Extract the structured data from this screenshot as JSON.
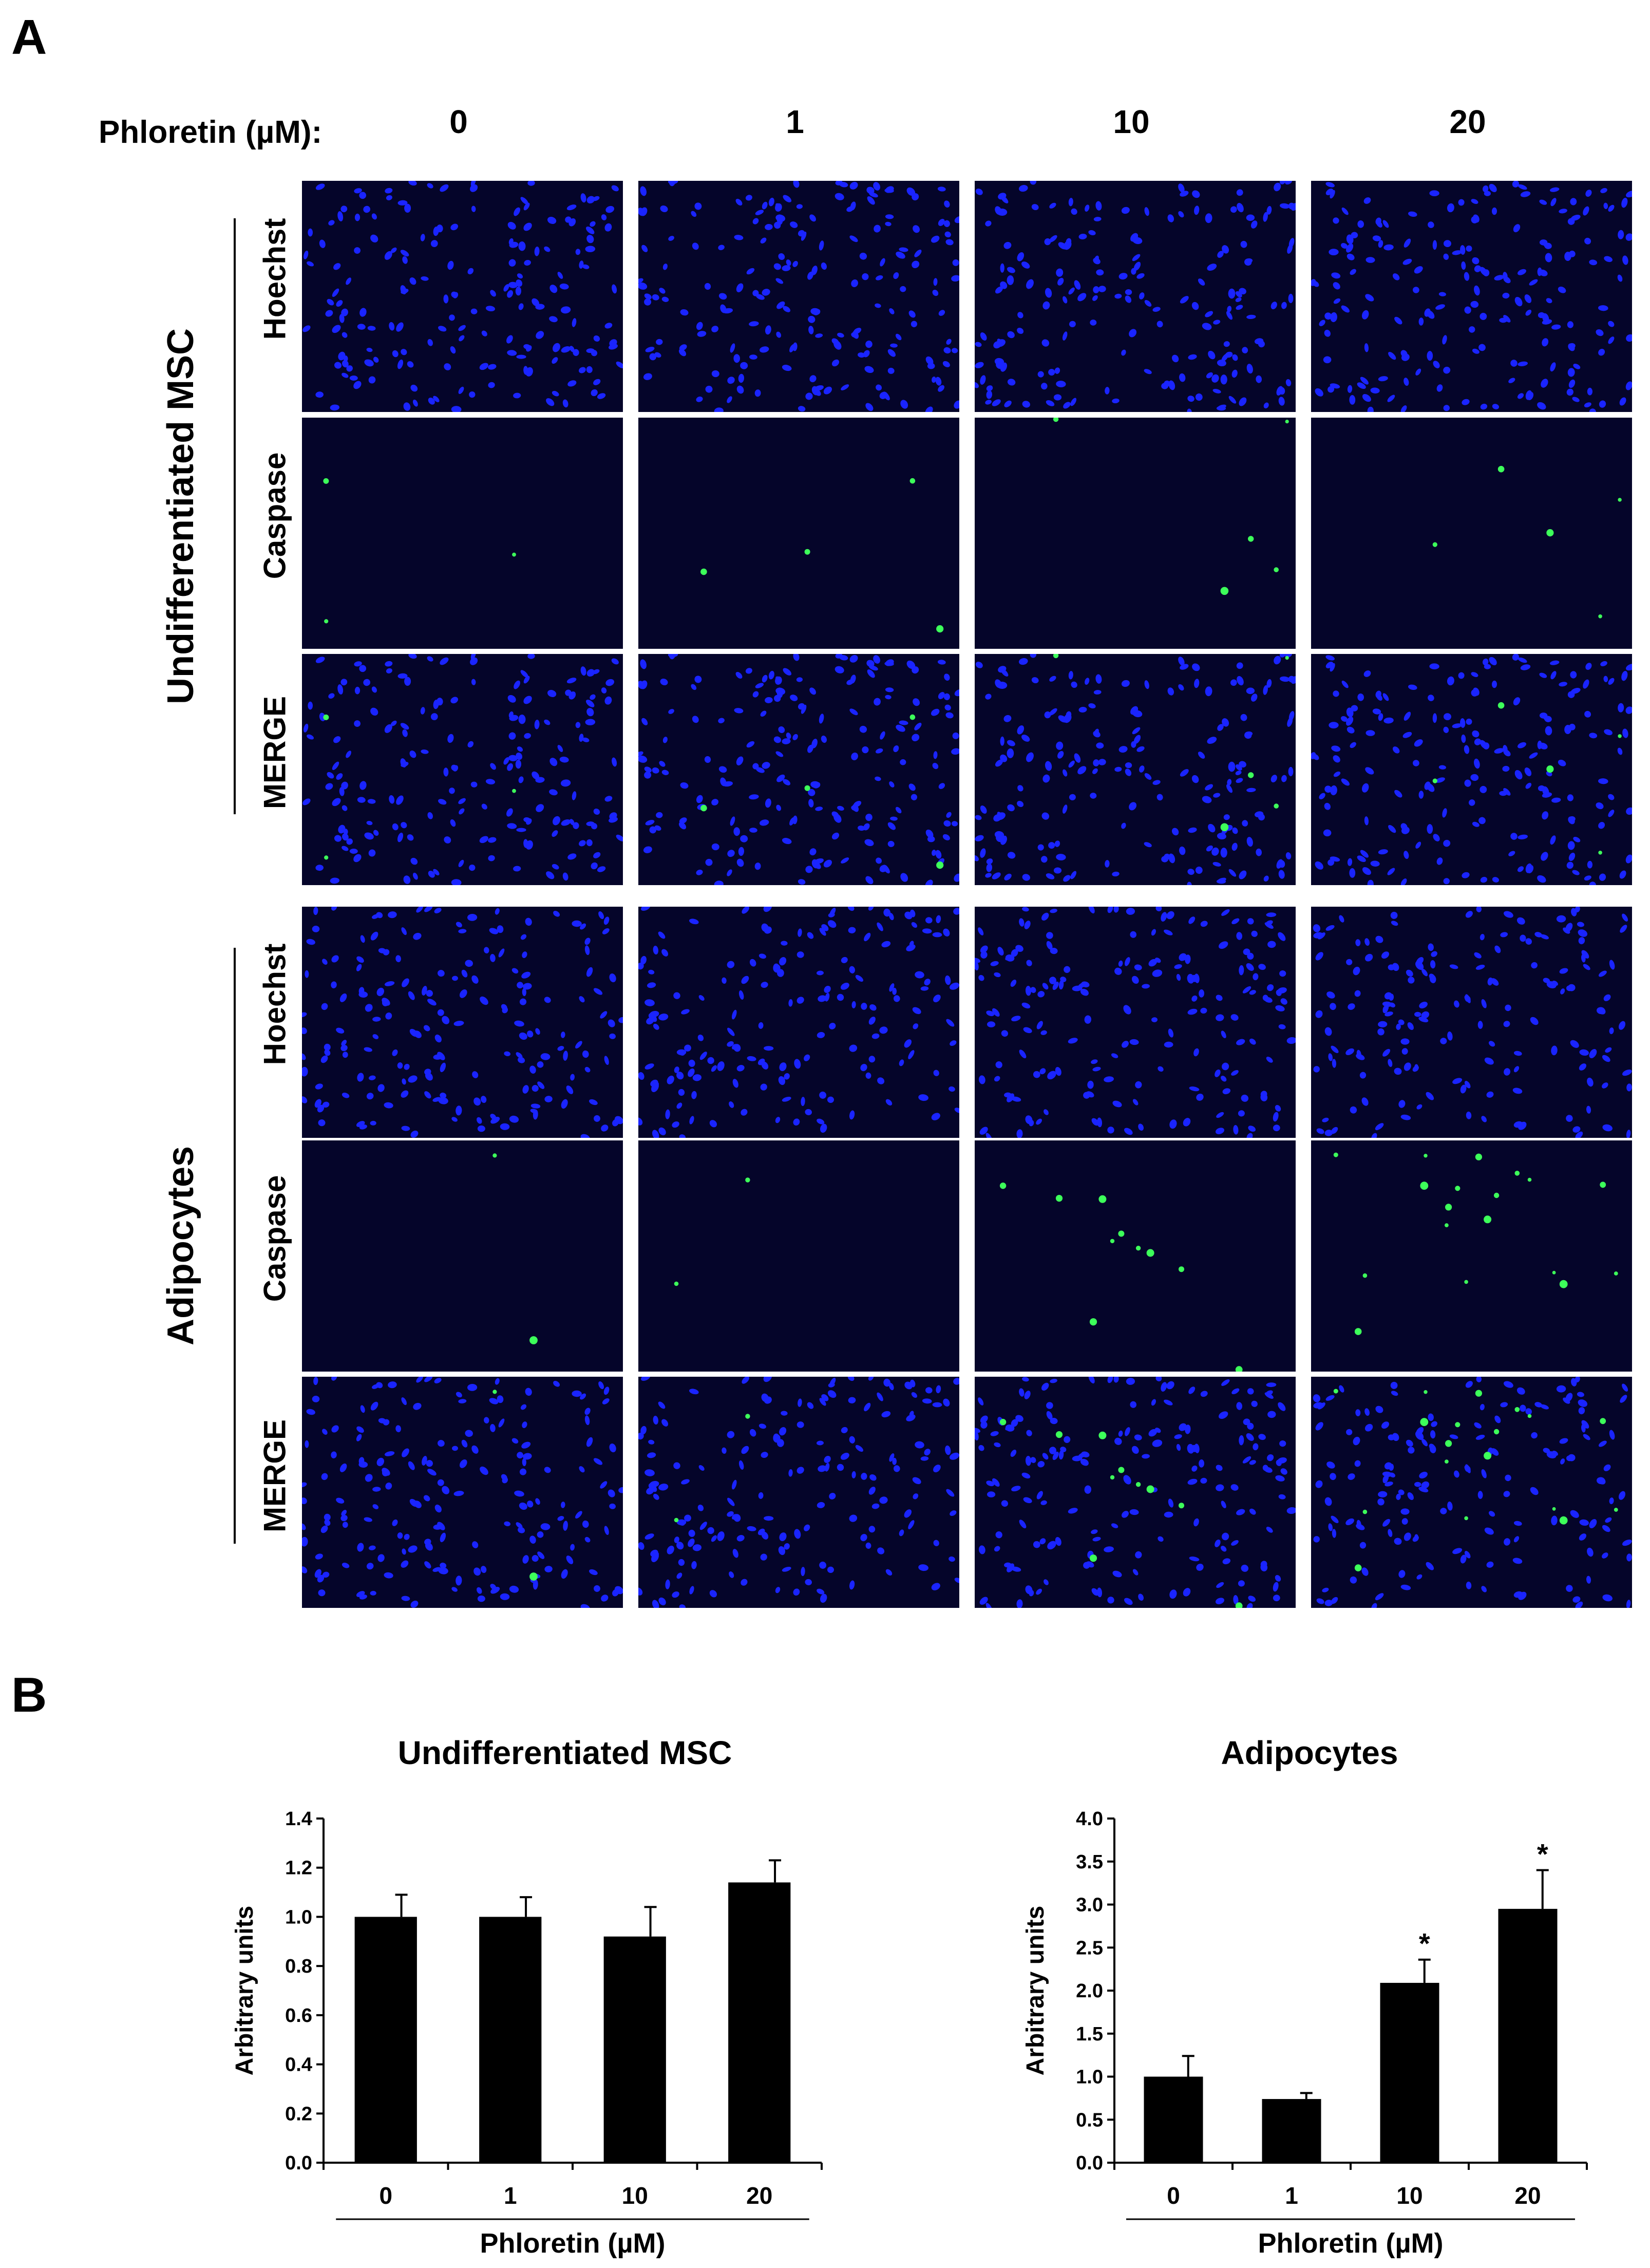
{
  "panel_a": {
    "letter": "A",
    "phloretin_label": "Phloretin (µM):",
    "concentrations": [
      "0",
      "1",
      "10",
      "20"
    ],
    "groups": [
      {
        "name": "Undifferentiated MSC",
        "rows": [
          "Hoechst",
          "Caspase",
          "MERGE"
        ]
      },
      {
        "name": "Adipocytes",
        "rows": [
          "Hoechst",
          "Caspase",
          "MERGE"
        ]
      }
    ],
    "colors": {
      "nuclei": "#1a24ff",
      "caspase": "#3dff5a",
      "background": "#05052a"
    }
  },
  "panel_b": {
    "letter": "B"
  },
  "chart_data": [
    {
      "type": "bar",
      "title": "Undifferentiated MSC",
      "categories": [
        "0",
        "1",
        "10",
        "20"
      ],
      "values": [
        1.0,
        1.0,
        0.92,
        1.14
      ],
      "errors": [
        0.09,
        0.08,
        0.12,
        0.09
      ],
      "significance": [
        "",
        "",
        "",
        ""
      ],
      "xlabel": "Phloretin (µM)",
      "ylabel": "Arbitrary units",
      "ylim": [
        0,
        1.4
      ],
      "yticks": [
        "0.0",
        "0.2",
        "0.4",
        "0.6",
        "0.8",
        "1.0",
        "1.2",
        "1.4"
      ],
      "bar_color": "#000000",
      "grid": false
    },
    {
      "type": "bar",
      "title": "Adipocytes",
      "categories": [
        "0",
        "1",
        "10",
        "20"
      ],
      "values": [
        1.0,
        0.74,
        2.09,
        2.95
      ],
      "errors": [
        0.24,
        0.07,
        0.27,
        0.45
      ],
      "significance": [
        "",
        "",
        "*",
        "*"
      ],
      "xlabel": "Phloretin (µM)",
      "ylabel": "Arbitrary units",
      "ylim": [
        0,
        4.0
      ],
      "yticks": [
        "0.0",
        "0.5",
        "1.0",
        "1.5",
        "2.0",
        "2.5",
        "3.0",
        "3.5",
        "4.0"
      ],
      "bar_color": "#000000",
      "grid": false
    }
  ]
}
